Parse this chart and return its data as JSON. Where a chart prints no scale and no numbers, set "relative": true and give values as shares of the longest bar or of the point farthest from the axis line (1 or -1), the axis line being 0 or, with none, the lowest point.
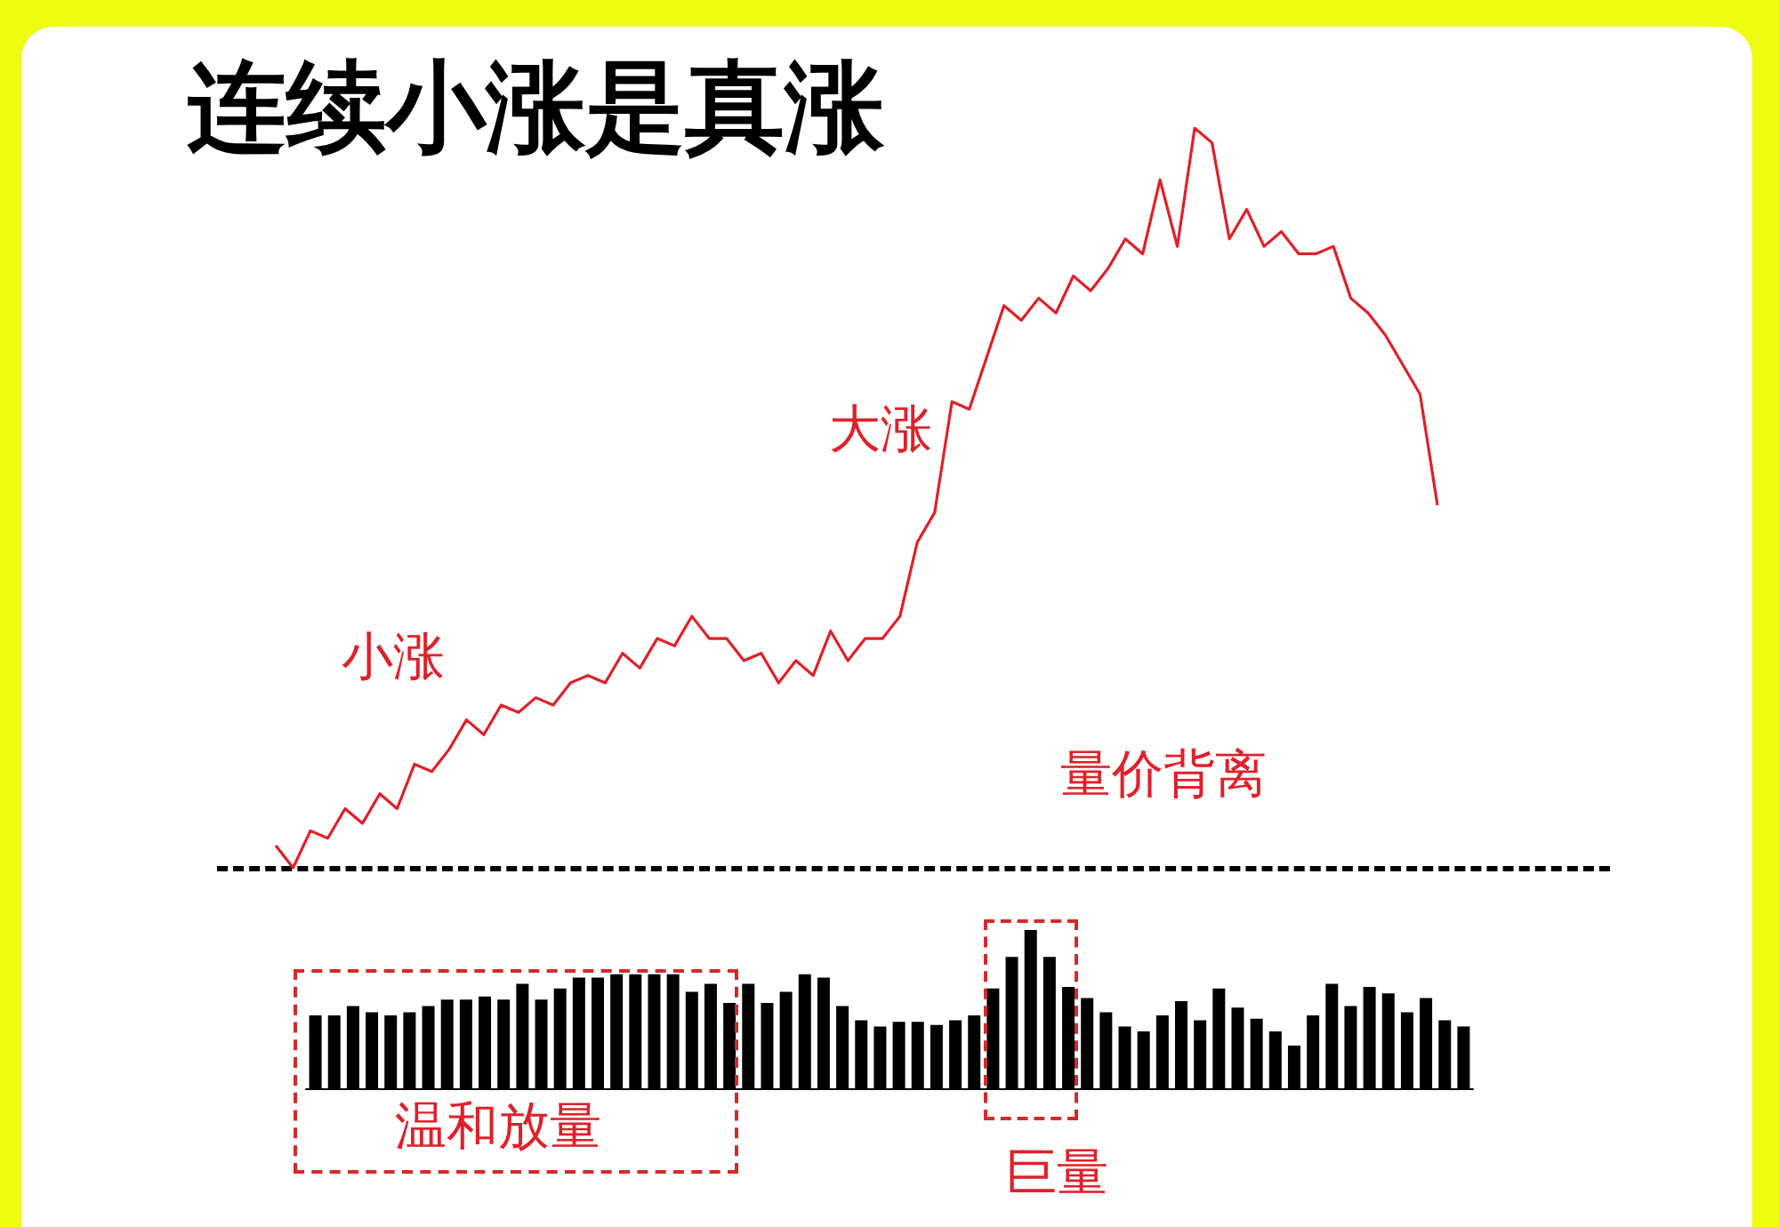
{
  "chart_data": [
    {
      "type": "line",
      "title": "连续小涨是真涨",
      "relative": true,
      "marker": "none",
      "categories": [
        null,
        null,
        null,
        null,
        null,
        null,
        null,
        null,
        null,
        null,
        null,
        null,
        null,
        null,
        null,
        null,
        null,
        null,
        null,
        null,
        null,
        null,
        null,
        null,
        null,
        null,
        null,
        null,
        null,
        null,
        null,
        null,
        null,
        null,
        null,
        null,
        null,
        null,
        null,
        null,
        null,
        null,
        null,
        null,
        null,
        null,
        null,
        null,
        null,
        null,
        null,
        null,
        null,
        null,
        null,
        null,
        null,
        null,
        null,
        null,
        null,
        null,
        null,
        null,
        null,
        null,
        null,
        null
      ],
      "series": [
        {
          "color": "#e0202a",
          "values": [
            0.03,
            0,
            0.05,
            0.04,
            0.08,
            0.06,
            0.1,
            0.08,
            0.14,
            0.13,
            0.16,
            0.2,
            0.18,
            0.22,
            0.21,
            0.23,
            0.22,
            0.25,
            0.26,
            0.25,
            0.29,
            0.27,
            0.31,
            0.3,
            0.34,
            0.31,
            0.31,
            0.28,
            0.29,
            0.25,
            0.28,
            0.26,
            0.32,
            0.28,
            0.31,
            0.31,
            0.34,
            0.44,
            0.48,
            0.63,
            0.62,
            0.69,
            0.76,
            0.74,
            0.77,
            0.75,
            0.8,
            0.78,
            0.81,
            0.85,
            0.83,
            0.93,
            0.84,
            1,
            0.98,
            0.85,
            0.89,
            0.84,
            0.86,
            0.83,
            0.83,
            0.84,
            0.77,
            0.75,
            0.72,
            0.68,
            0.64,
            0.49
          ]
        }
      ],
      "annotations": [
        "小涨",
        "大涨",
        "量价背离"
      ]
    },
    {
      "type": "bar",
      "relative": true,
      "categories": [
        null,
        null,
        null,
        null,
        null,
        null,
        null,
        null,
        null,
        null,
        null,
        null,
        null,
        null,
        null,
        null,
        null,
        null,
        null,
        null,
        null,
        null,
        null,
        null,
        null,
        null,
        null,
        null,
        null,
        null,
        null,
        null,
        null,
        null,
        null,
        null,
        null,
        null,
        null,
        null,
        null,
        null,
        null,
        null,
        null,
        null,
        null,
        null,
        null,
        null,
        null,
        null,
        null,
        null,
        null,
        null,
        null,
        null,
        null,
        null,
        null,
        null
      ],
      "series": [
        {
          "color": "#000000",
          "values": [
            0.46,
            0.46,
            0.52,
            0.48,
            0.46,
            0.48,
            0.52,
            0.56,
            0.56,
            0.58,
            0.56,
            0.66,
            0.56,
            0.63,
            0.7,
            0.7,
            0.72,
            0.72,
            0.72,
            0.72,
            0.61,
            0.66,
            0.54,
            0.66,
            0.54,
            0.61,
            0.72,
            0.7,
            0.52,
            0.43,
            0.39,
            0.42,
            0.42,
            0.4,
            0.43,
            0.46,
            0.63,
            0.83,
            1,
            0.83,
            0.64,
            0.57,
            0.48,
            0.39,
            0.36,
            0.46,
            0.55,
            0.43,
            0.63,
            0.51,
            0.44,
            0.36,
            0.27,
            0.46,
            0.66,
            0.52,
            0.64,
            0.6,
            0.48,
            0.57,
            0.43,
            0.39
          ]
        }
      ],
      "annotations": [
        "温和放量",
        "巨量"
      ]
    }
  ]
}
